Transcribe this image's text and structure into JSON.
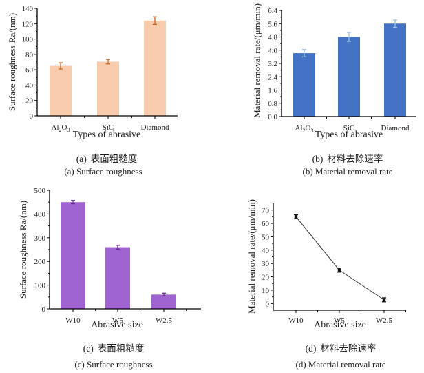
{
  "chart_data": [
    {
      "id": "a",
      "type": "bar",
      "title": "",
      "caption_cn_label": "(a)",
      "caption_cn": "表面粗糙度",
      "caption_en": "(a) Surface roughness",
      "xlabel": "Types of abrasive",
      "ylabel": "Surface roughness Ra/(nm)",
      "categories": [
        "Al2O3",
        "SiC",
        "Diamond"
      ],
      "category_display": [
        [
          "Al",
          "2",
          "O",
          "3"
        ],
        [
          "SiC"
        ],
        [
          "Diamond"
        ]
      ],
      "values": [
        65,
        70.5,
        124
      ],
      "errors": [
        4,
        3,
        5
      ],
      "ylim": [
        0,
        140
      ],
      "yticks": [
        0,
        20,
        40,
        60,
        80,
        100,
        120,
        140
      ],
      "ytick_labels": [
        "0",
        "20",
        "40",
        "60",
        "80",
        "100",
        "120",
        "140"
      ],
      "colors": {
        "bar": "#F8CBAD",
        "error": "#D0641F"
      },
      "grid": false
    },
    {
      "id": "b",
      "type": "bar",
      "title": "",
      "caption_cn_label": "(b)",
      "caption_cn": "材料去除速率",
      "caption_en": "(b) Material removal rate",
      "xlabel": "Types of abrasive",
      "ylabel": "Material removal rate/(μm/min)",
      "categories": [
        "Al2O3",
        "SiC",
        "Diamond"
      ],
      "category_display": [
        [
          "Al",
          "2",
          "O",
          "3"
        ],
        [
          "SiC"
        ],
        [
          "Diamond"
        ]
      ],
      "values": [
        3.82,
        4.8,
        5.6
      ],
      "errors": [
        0.22,
        0.27,
        0.22
      ],
      "ylim": [
        0,
        6.4
      ],
      "yticks": [
        0,
        0.8,
        1.6,
        2.4,
        3.2,
        4.0,
        4.8,
        5.6,
        6.4
      ],
      "ytick_labels": [
        "0.0",
        "0.8",
        "1.6",
        "2.4",
        "3.2",
        "4.0",
        "4.8",
        "5.6",
        "6.4"
      ],
      "colors": {
        "bar": "#4472C4",
        "error": "#9DC3E6"
      },
      "grid": false
    },
    {
      "id": "c",
      "type": "bar",
      "title": "",
      "caption_cn_label": "(c)",
      "caption_cn": "表面粗糙度",
      "caption_en": "(c) Surface roughness",
      "xlabel": "Abrasive size",
      "ylabel": "Surface roughness Ra/(nm)",
      "categories": [
        "W10",
        "W5",
        "W2.5"
      ],
      "category_display": [
        [
          "W10"
        ],
        [
          "W5"
        ],
        [
          "W2.5"
        ]
      ],
      "values": [
        450,
        260,
        60
      ],
      "errors": [
        7,
        8,
        6
      ],
      "ylim": [
        0,
        500
      ],
      "yticks": [
        0,
        100,
        200,
        300,
        400,
        500
      ],
      "ytick_labels": [
        "0",
        "100",
        "200",
        "300",
        "400",
        "500"
      ],
      "colors": {
        "bar": "#A064D2",
        "error": "#6A2A9A"
      },
      "grid": false
    },
    {
      "id": "d",
      "type": "line",
      "title": "",
      "caption_cn_label": "(d)",
      "caption_cn": "材料去除速率",
      "caption_en": "(d) Material removal rate",
      "xlabel": "Abrasive size",
      "ylabel": "Material removal rate/(μm/min)",
      "categories": [
        "W10",
        "W5",
        "W2.5"
      ],
      "category_display": [
        [
          "W10"
        ],
        [
          "W5"
        ],
        [
          "W2.5"
        ]
      ],
      "values": [
        65,
        25,
        2.8
      ],
      "errors": [
        1.5,
        1.5,
        1.5
      ],
      "ylim": [
        -5,
        75
      ],
      "yticks": [
        0,
        10,
        20,
        30,
        40,
        50,
        60,
        70
      ],
      "ytick_labels": [
        "0",
        "10",
        "20",
        "30",
        "40",
        "50",
        "60",
        "70"
      ],
      "colors": {
        "line": "#333333",
        "marker": "#111111",
        "error": "#111111"
      },
      "grid": false
    }
  ]
}
